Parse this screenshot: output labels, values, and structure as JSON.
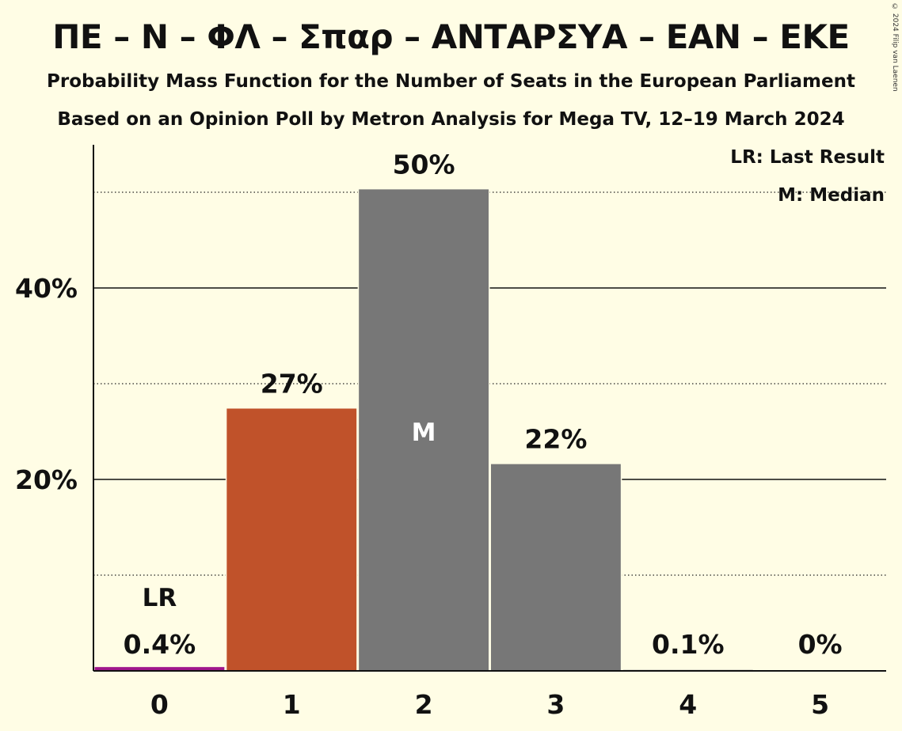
{
  "header": {
    "title": "ΠΕ – Ν – ΦΛ – Σπαρ – ΑΝΤΑΡΣΥΑ – ΕΑΝ – ΕΚΕ",
    "subtitle1": "Probability Mass Function for the Number of Seats in the European Parliament",
    "subtitle2": "Based on an Opinion Poll by Metron Analysis for Mega TV, 12–19 March 2024",
    "copyright": "© 2024 Filip van Laenen"
  },
  "legend": {
    "last_result": "LR: Last Result",
    "median": "M: Median"
  },
  "chart_data": {
    "type": "bar",
    "categories": [
      "0",
      "1",
      "2",
      "3",
      "4",
      "5"
    ],
    "values": [
      0.4,
      27.4,
      50.3,
      21.6,
      0.1,
      0
    ],
    "value_labels": [
      "0.4%",
      "27%",
      "50%",
      "22%",
      "0.1%",
      "0%"
    ],
    "bar_colors": [
      "#a0168c",
      "#c0522a",
      "#777777",
      "#777777",
      "#777777",
      "#777777"
    ],
    "last_result_index": 0,
    "last_result_label": "LR",
    "median_index": 2,
    "median_label": "M",
    "ylim": [
      0,
      55
    ],
    "y_ticks": [
      20,
      40
    ],
    "y_tick_labels": [
      "20%",
      "40%"
    ],
    "minor_gridlines": [
      10,
      30,
      50
    ],
    "grid": true,
    "legend_placement": "top-right"
  }
}
